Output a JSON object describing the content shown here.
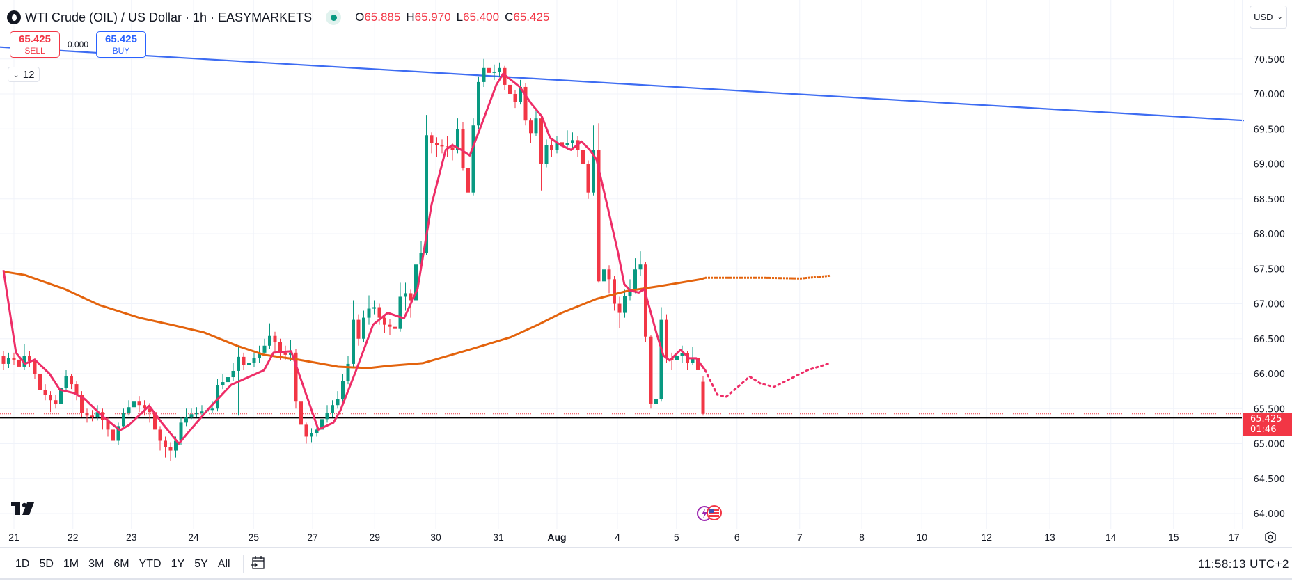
{
  "header": {
    "title": "WTI Crude (OIL) / US Dollar · 1h · EASYMARKETS",
    "ohlc": [
      {
        "label": "O",
        "value": "65.885"
      },
      {
        "label": "H",
        "value": "65.970"
      },
      {
        "label": "L",
        "value": "65.400"
      },
      {
        "label": "C",
        "value": "65.425"
      }
    ]
  },
  "trade": {
    "sell_price": "65.425",
    "sell_label": "SELL",
    "spread": "0.000",
    "buy_price": "65.425",
    "buy_label": "BUY"
  },
  "indicators_toggle": {
    "count": "12"
  },
  "currency": "USD",
  "price_tag": {
    "price": "65.425",
    "countdown": "01:46"
  },
  "toolbar": {
    "ranges": [
      "1D",
      "5D",
      "1M",
      "3M",
      "6M",
      "YTD",
      "1Y",
      "5Y",
      "All"
    ],
    "clock": "11:58:13 UTC+2"
  },
  "colors": {
    "up": "#089981",
    "down": "#f23645",
    "ma_fast": "#ee2d67",
    "ma_slow": "#e3630d",
    "trendline": "#3d6cf2"
  },
  "chart_data": {
    "type": "candlestick",
    "title": "WTI Crude (OIL) / US Dollar · 1h · EASYMARKETS",
    "x_unit": "bar index (2h bars, approximated)",
    "ylim": [
      63.9,
      71.0
    ],
    "grid": true,
    "y_ticks": [
      "70.500",
      "70.000",
      "69.500",
      "69.000",
      "68.500",
      "68.000",
      "67.500",
      "67.000",
      "66.500",
      "66.000",
      "65.500",
      "65.000",
      "64.500",
      "64.000"
    ],
    "x_ticks": [
      {
        "label": "21",
        "t": 2
      },
      {
        "label": "22",
        "t": 13.3
      },
      {
        "label": "23",
        "t": 24.5
      },
      {
        "label": "24",
        "t": 36.4
      },
      {
        "label": "25",
        "t": 47.9
      },
      {
        "label": "27",
        "t": 59.2
      },
      {
        "label": "29",
        "t": 71.1
      },
      {
        "label": "30",
        "t": 82.8
      },
      {
        "label": "31",
        "t": 94.8
      },
      {
        "label": "Aug",
        "t": 106
      },
      {
        "label": "4",
        "t": 117.6
      },
      {
        "label": "5",
        "t": 128.9
      },
      {
        "label": "6",
        "t": 140.5
      },
      {
        "label": "7",
        "t": 152.5
      },
      {
        "label": "8",
        "t": 164.4
      },
      {
        "label": "10",
        "t": 175.9
      },
      {
        "label": "12",
        "t": 188.3
      },
      {
        "label": "13",
        "t": 200.4
      },
      {
        "label": "14",
        "t": 212.1
      },
      {
        "label": "15",
        "t": 224.1
      },
      {
        "label": "17",
        "t": 235.7
      }
    ],
    "candles_ohlc": [
      [
        66.25,
        66.32,
        66.05,
        66.14
      ],
      [
        66.14,
        66.3,
        66.08,
        66.22
      ],
      [
        66.22,
        66.3,
        66.12,
        66.2
      ],
      [
        66.2,
        66.26,
        66.02,
        66.1
      ],
      [
        66.1,
        66.42,
        66.05,
        66.25
      ],
      [
        66.25,
        66.32,
        66.1,
        66.18
      ],
      [
        66.18,
        66.22,
        65.92,
        66.0
      ],
      [
        66.0,
        66.05,
        65.7,
        65.77
      ],
      [
        65.77,
        65.85,
        65.62,
        65.7
      ],
      [
        65.7,
        65.75,
        65.45,
        65.62
      ],
      [
        65.62,
        65.7,
        65.5,
        65.57
      ],
      [
        65.57,
        65.88,
        65.52,
        65.8
      ],
      [
        65.8,
        66.05,
        65.75,
        65.97
      ],
      [
        65.97,
        66.0,
        65.78,
        65.85
      ],
      [
        65.85,
        65.9,
        65.62,
        65.7
      ],
      [
        65.7,
        65.75,
        65.38,
        65.44
      ],
      [
        65.44,
        65.5,
        65.3,
        65.4
      ],
      [
        65.4,
        65.48,
        65.32,
        65.38
      ],
      [
        65.38,
        65.55,
        65.33,
        65.45
      ],
      [
        65.45,
        65.5,
        65.2,
        65.34
      ],
      [
        65.34,
        65.38,
        65.1,
        65.2
      ],
      [
        65.2,
        65.25,
        64.85,
        65.04
      ],
      [
        65.04,
        65.3,
        64.98,
        65.25
      ],
      [
        65.25,
        65.5,
        65.2,
        65.44
      ],
      [
        65.44,
        65.62,
        65.4,
        65.52
      ],
      [
        65.52,
        65.68,
        65.48,
        65.6
      ],
      [
        65.6,
        65.68,
        65.45,
        65.55
      ],
      [
        65.55,
        65.62,
        65.4,
        65.5
      ],
      [
        65.5,
        65.58,
        65.3,
        65.45
      ],
      [
        65.45,
        65.5,
        65.1,
        65.2
      ],
      [
        65.2,
        65.25,
        64.9,
        65.04
      ],
      [
        65.04,
        65.1,
        64.8,
        64.95
      ],
      [
        64.95,
        65.02,
        64.75,
        64.9
      ],
      [
        64.9,
        65.1,
        64.8,
        65.04
      ],
      [
        65.04,
        65.38,
        64.98,
        65.3
      ],
      [
        65.3,
        65.5,
        65.25,
        65.37
      ],
      [
        65.37,
        65.5,
        65.35,
        65.42
      ],
      [
        65.42,
        65.52,
        65.38,
        65.44
      ],
      [
        65.44,
        65.55,
        65.4,
        65.46
      ],
      [
        65.46,
        65.58,
        65.42,
        65.48
      ],
      [
        65.48,
        65.6,
        65.44,
        65.5
      ],
      [
        65.5,
        65.92,
        65.46,
        65.84
      ],
      [
        65.84,
        66.0,
        65.78,
        65.88
      ],
      [
        65.88,
        66.1,
        65.82,
        65.95
      ],
      [
        65.95,
        66.15,
        65.9,
        66.04
      ],
      [
        66.04,
        66.4,
        65.4,
        66.24
      ],
      [
        66.24,
        66.3,
        66.05,
        66.12
      ],
      [
        66.12,
        66.25,
        66.08,
        66.15
      ],
      [
        66.15,
        66.3,
        66.1,
        66.22
      ],
      [
        66.22,
        66.4,
        66.15,
        66.3
      ],
      [
        66.3,
        66.5,
        66.25,
        66.4
      ],
      [
        66.4,
        66.72,
        66.35,
        66.54
      ],
      [
        66.54,
        66.6,
        66.3,
        66.45
      ],
      [
        66.45,
        66.5,
        66.2,
        66.3
      ],
      [
        66.3,
        66.4,
        66.2,
        66.27
      ],
      [
        66.27,
        66.48,
        66.18,
        66.3
      ],
      [
        66.3,
        66.35,
        65.5,
        65.6
      ],
      [
        65.6,
        65.65,
        65.15,
        65.27
      ],
      [
        65.27,
        65.3,
        65.0,
        65.1
      ],
      [
        65.1,
        65.22,
        65.02,
        65.15
      ],
      [
        65.15,
        65.3,
        65.1,
        65.2
      ],
      [
        65.2,
        65.42,
        65.15,
        65.35
      ],
      [
        65.35,
        65.55,
        65.3,
        65.44
      ],
      [
        65.44,
        65.62,
        65.38,
        65.55
      ],
      [
        65.55,
        65.75,
        65.5,
        65.64
      ],
      [
        65.64,
        66.0,
        65.58,
        65.9
      ],
      [
        65.9,
        66.25,
        65.85,
        66.14
      ],
      [
        66.14,
        67.05,
        66.1,
        66.77
      ],
      [
        66.77,
        66.85,
        66.4,
        66.5
      ],
      [
        66.5,
        66.9,
        66.45,
        66.8
      ],
      [
        66.8,
        67.12,
        66.7,
        66.93
      ],
      [
        66.93,
        67.05,
        66.85,
        66.95
      ],
      [
        66.95,
        67.0,
        66.7,
        66.8
      ],
      [
        66.8,
        66.85,
        66.58,
        66.7
      ],
      [
        66.7,
        66.78,
        66.55,
        66.67
      ],
      [
        66.67,
        66.75,
        66.55,
        66.64
      ],
      [
        66.64,
        67.3,
        66.6,
        67.1
      ],
      [
        67.1,
        67.3,
        66.9,
        67.15
      ],
      [
        67.15,
        67.2,
        66.8,
        67.05
      ],
      [
        67.05,
        67.7,
        67.0,
        67.56
      ],
      [
        67.56,
        67.9,
        67.5,
        67.73
      ],
      [
        67.73,
        69.7,
        67.7,
        69.41
      ],
      [
        69.41,
        69.45,
        69.15,
        69.3
      ],
      [
        69.3,
        69.38,
        69.1,
        69.27
      ],
      [
        69.27,
        69.35,
        69.15,
        69.25
      ],
      [
        69.25,
        69.4,
        69.1,
        69.24
      ],
      [
        69.24,
        69.3,
        69.05,
        69.2
      ],
      [
        69.2,
        69.65,
        69.15,
        69.5
      ],
      [
        69.5,
        69.6,
        68.9,
        68.94
      ],
      [
        68.94,
        69.0,
        68.48,
        68.59
      ],
      [
        68.59,
        69.65,
        68.55,
        69.55
      ],
      [
        69.55,
        70.25,
        69.5,
        70.17
      ],
      [
        70.17,
        70.5,
        70.1,
        70.37
      ],
      [
        70.37,
        70.45,
        69.6,
        70.3
      ],
      [
        70.3,
        70.42,
        70.2,
        70.31
      ],
      [
        70.31,
        70.45,
        70.25,
        70.37
      ],
      [
        70.37,
        70.4,
        70.05,
        70.13
      ],
      [
        70.13,
        70.15,
        69.92,
        70.0
      ],
      [
        70.0,
        70.05,
        69.8,
        69.89
      ],
      [
        69.89,
        70.2,
        69.85,
        70.1
      ],
      [
        70.1,
        70.15,
        69.55,
        69.62
      ],
      [
        69.62,
        69.65,
        69.3,
        69.44
      ],
      [
        69.44,
        69.75,
        69.4,
        69.65
      ],
      [
        69.65,
        69.7,
        68.62,
        69.0
      ],
      [
        69.0,
        69.35,
        68.95,
        69.27
      ],
      [
        69.27,
        69.35,
        69.1,
        69.2
      ],
      [
        69.2,
        69.4,
        69.15,
        69.31
      ],
      [
        69.31,
        69.38,
        69.18,
        69.27
      ],
      [
        69.27,
        69.48,
        69.2,
        69.3
      ],
      [
        69.3,
        69.45,
        69.22,
        69.34
      ],
      [
        69.34,
        69.4,
        69.1,
        69.2
      ],
      [
        69.2,
        69.25,
        68.85,
        69.0
      ],
      [
        69.0,
        69.05,
        68.5,
        68.59
      ],
      [
        68.59,
        69.55,
        68.55,
        69.2
      ],
      [
        69.2,
        69.58,
        67.3,
        67.32
      ],
      [
        67.32,
        67.75,
        67.15,
        67.49
      ],
      [
        67.49,
        67.55,
        67.15,
        67.35
      ],
      [
        67.35,
        67.4,
        66.9,
        67.0
      ],
      [
        67.0,
        67.1,
        66.65,
        66.87
      ],
      [
        66.87,
        67.2,
        66.8,
        67.11
      ],
      [
        67.11,
        67.35,
        67.05,
        67.21
      ],
      [
        67.21,
        67.65,
        67.15,
        67.49
      ],
      [
        67.49,
        67.75,
        67.4,
        67.56
      ],
      [
        67.56,
        67.6,
        66.45,
        66.53
      ],
      [
        66.53,
        66.55,
        65.5,
        65.57
      ],
      [
        65.57,
        65.7,
        65.48,
        65.64
      ],
      [
        65.64,
        66.95,
        65.6,
        66.77
      ],
      [
        66.77,
        66.85,
        66.15,
        66.22
      ],
      [
        66.22,
        66.3,
        66.05,
        66.19
      ],
      [
        66.19,
        66.35,
        66.1,
        66.25
      ],
      [
        66.25,
        66.4,
        66.15,
        66.29
      ],
      [
        66.29,
        66.32,
        66.05,
        66.15
      ],
      [
        66.15,
        66.38,
        66.12,
        66.22
      ],
      [
        66.22,
        66.35,
        65.95,
        66.05
      ],
      [
        65.885,
        65.97,
        65.4,
        65.425
      ]
    ],
    "ma_fast": {
      "points": [
        [
          0,
          67.48
        ],
        [
          2.4,
          66.3
        ],
        [
          4.1,
          66.14
        ],
        [
          6,
          66.2
        ],
        [
          8.8,
          66.0
        ],
        [
          10.8,
          65.77
        ],
        [
          13.6,
          65.72
        ],
        [
          15.5,
          65.64
        ],
        [
          19.3,
          65.37
        ],
        [
          22.3,
          65.19
        ],
        [
          24.1,
          65.27
        ],
        [
          27.9,
          65.54
        ],
        [
          30.3,
          65.3
        ],
        [
          33.6,
          65.0
        ],
        [
          35.5,
          65.17
        ],
        [
          39.3,
          65.5
        ],
        [
          43.6,
          65.84
        ],
        [
          46.9,
          65.95
        ],
        [
          49.9,
          66.05
        ],
        [
          51.7,
          66.3
        ],
        [
          55.1,
          66.32
        ],
        [
          60.3,
          65.2
        ],
        [
          63.2,
          65.3
        ],
        [
          64.5,
          65.47
        ],
        [
          67.5,
          66.04
        ],
        [
          70.8,
          66.7
        ],
        [
          73.6,
          66.87
        ],
        [
          76.7,
          66.79
        ],
        [
          79.3,
          67.21
        ],
        [
          82,
          68.42
        ],
        [
          84.7,
          69.2
        ],
        [
          86,
          69.27
        ],
        [
          87.7,
          69.2
        ],
        [
          89.3,
          69.12
        ],
        [
          91.3,
          69.51
        ],
        [
          94.4,
          70.13
        ],
        [
          95.7,
          70.29
        ],
        [
          98.9,
          70.1
        ],
        [
          101.1,
          69.86
        ],
        [
          103.1,
          69.68
        ],
        [
          104.7,
          69.37
        ],
        [
          106.7,
          69.27
        ],
        [
          108.7,
          69.2
        ],
        [
          110.7,
          69.32
        ],
        [
          112.3,
          69.2
        ],
        [
          113.6,
          69.06
        ],
        [
          115.6,
          68.42
        ],
        [
          117.7,
          67.73
        ],
        [
          118.9,
          67.28
        ],
        [
          120,
          67.19
        ],
        [
          121.7,
          67.16
        ],
        [
          122.7,
          67.21
        ],
        [
          123.7,
          66.95
        ],
        [
          125.1,
          66.57
        ],
        [
          126.4,
          66.26
        ],
        [
          127.6,
          66.19
        ],
        [
          129.7,
          66.34
        ],
        [
          131.3,
          66.22
        ],
        [
          132.7,
          66.22
        ],
        [
          134.4,
          66.05
        ]
      ],
      "projection": [
        [
          134.4,
          66.05
        ],
        [
          136.7,
          65.7
        ],
        [
          138.4,
          65.67
        ],
        [
          140.5,
          65.8
        ],
        [
          142.9,
          65.96
        ],
        [
          145,
          65.86
        ],
        [
          147.6,
          65.81
        ],
        [
          150.8,
          65.93
        ],
        [
          154,
          66.05
        ],
        [
          157.9,
          66.14
        ]
      ]
    },
    "ma_slow": {
      "points": [
        [
          0,
          67.46
        ],
        [
          4.1,
          67.41
        ],
        [
          11.7,
          67.21
        ],
        [
          18.4,
          66.98
        ],
        [
          26,
          66.8
        ],
        [
          32.7,
          66.69
        ],
        [
          38.4,
          66.59
        ],
        [
          44.7,
          66.4
        ],
        [
          49.9,
          66.27
        ],
        [
          56.5,
          66.2
        ],
        [
          64.1,
          66.1
        ],
        [
          69.9,
          66.08
        ],
        [
          73.6,
          66.11
        ],
        [
          80.3,
          66.15
        ],
        [
          89.1,
          66.34
        ],
        [
          97.1,
          66.52
        ],
        [
          102.4,
          66.7
        ],
        [
          106.9,
          66.87
        ],
        [
          113.6,
          67.07
        ],
        [
          119.3,
          67.18
        ],
        [
          125.6,
          67.25
        ],
        [
          133.6,
          67.35
        ],
        [
          134.4,
          67.37
        ]
      ],
      "projection": [
        [
          134.4,
          67.37
        ],
        [
          146,
          67.37
        ],
        [
          152.7,
          67.36
        ],
        [
          158.4,
          67.4
        ]
      ]
    },
    "trendline": [
      [
        -0.67,
        70.67
      ],
      [
        237.6,
        69.62
      ]
    ],
    "horizontal_line": 65.37,
    "last_price": 65.425
  }
}
